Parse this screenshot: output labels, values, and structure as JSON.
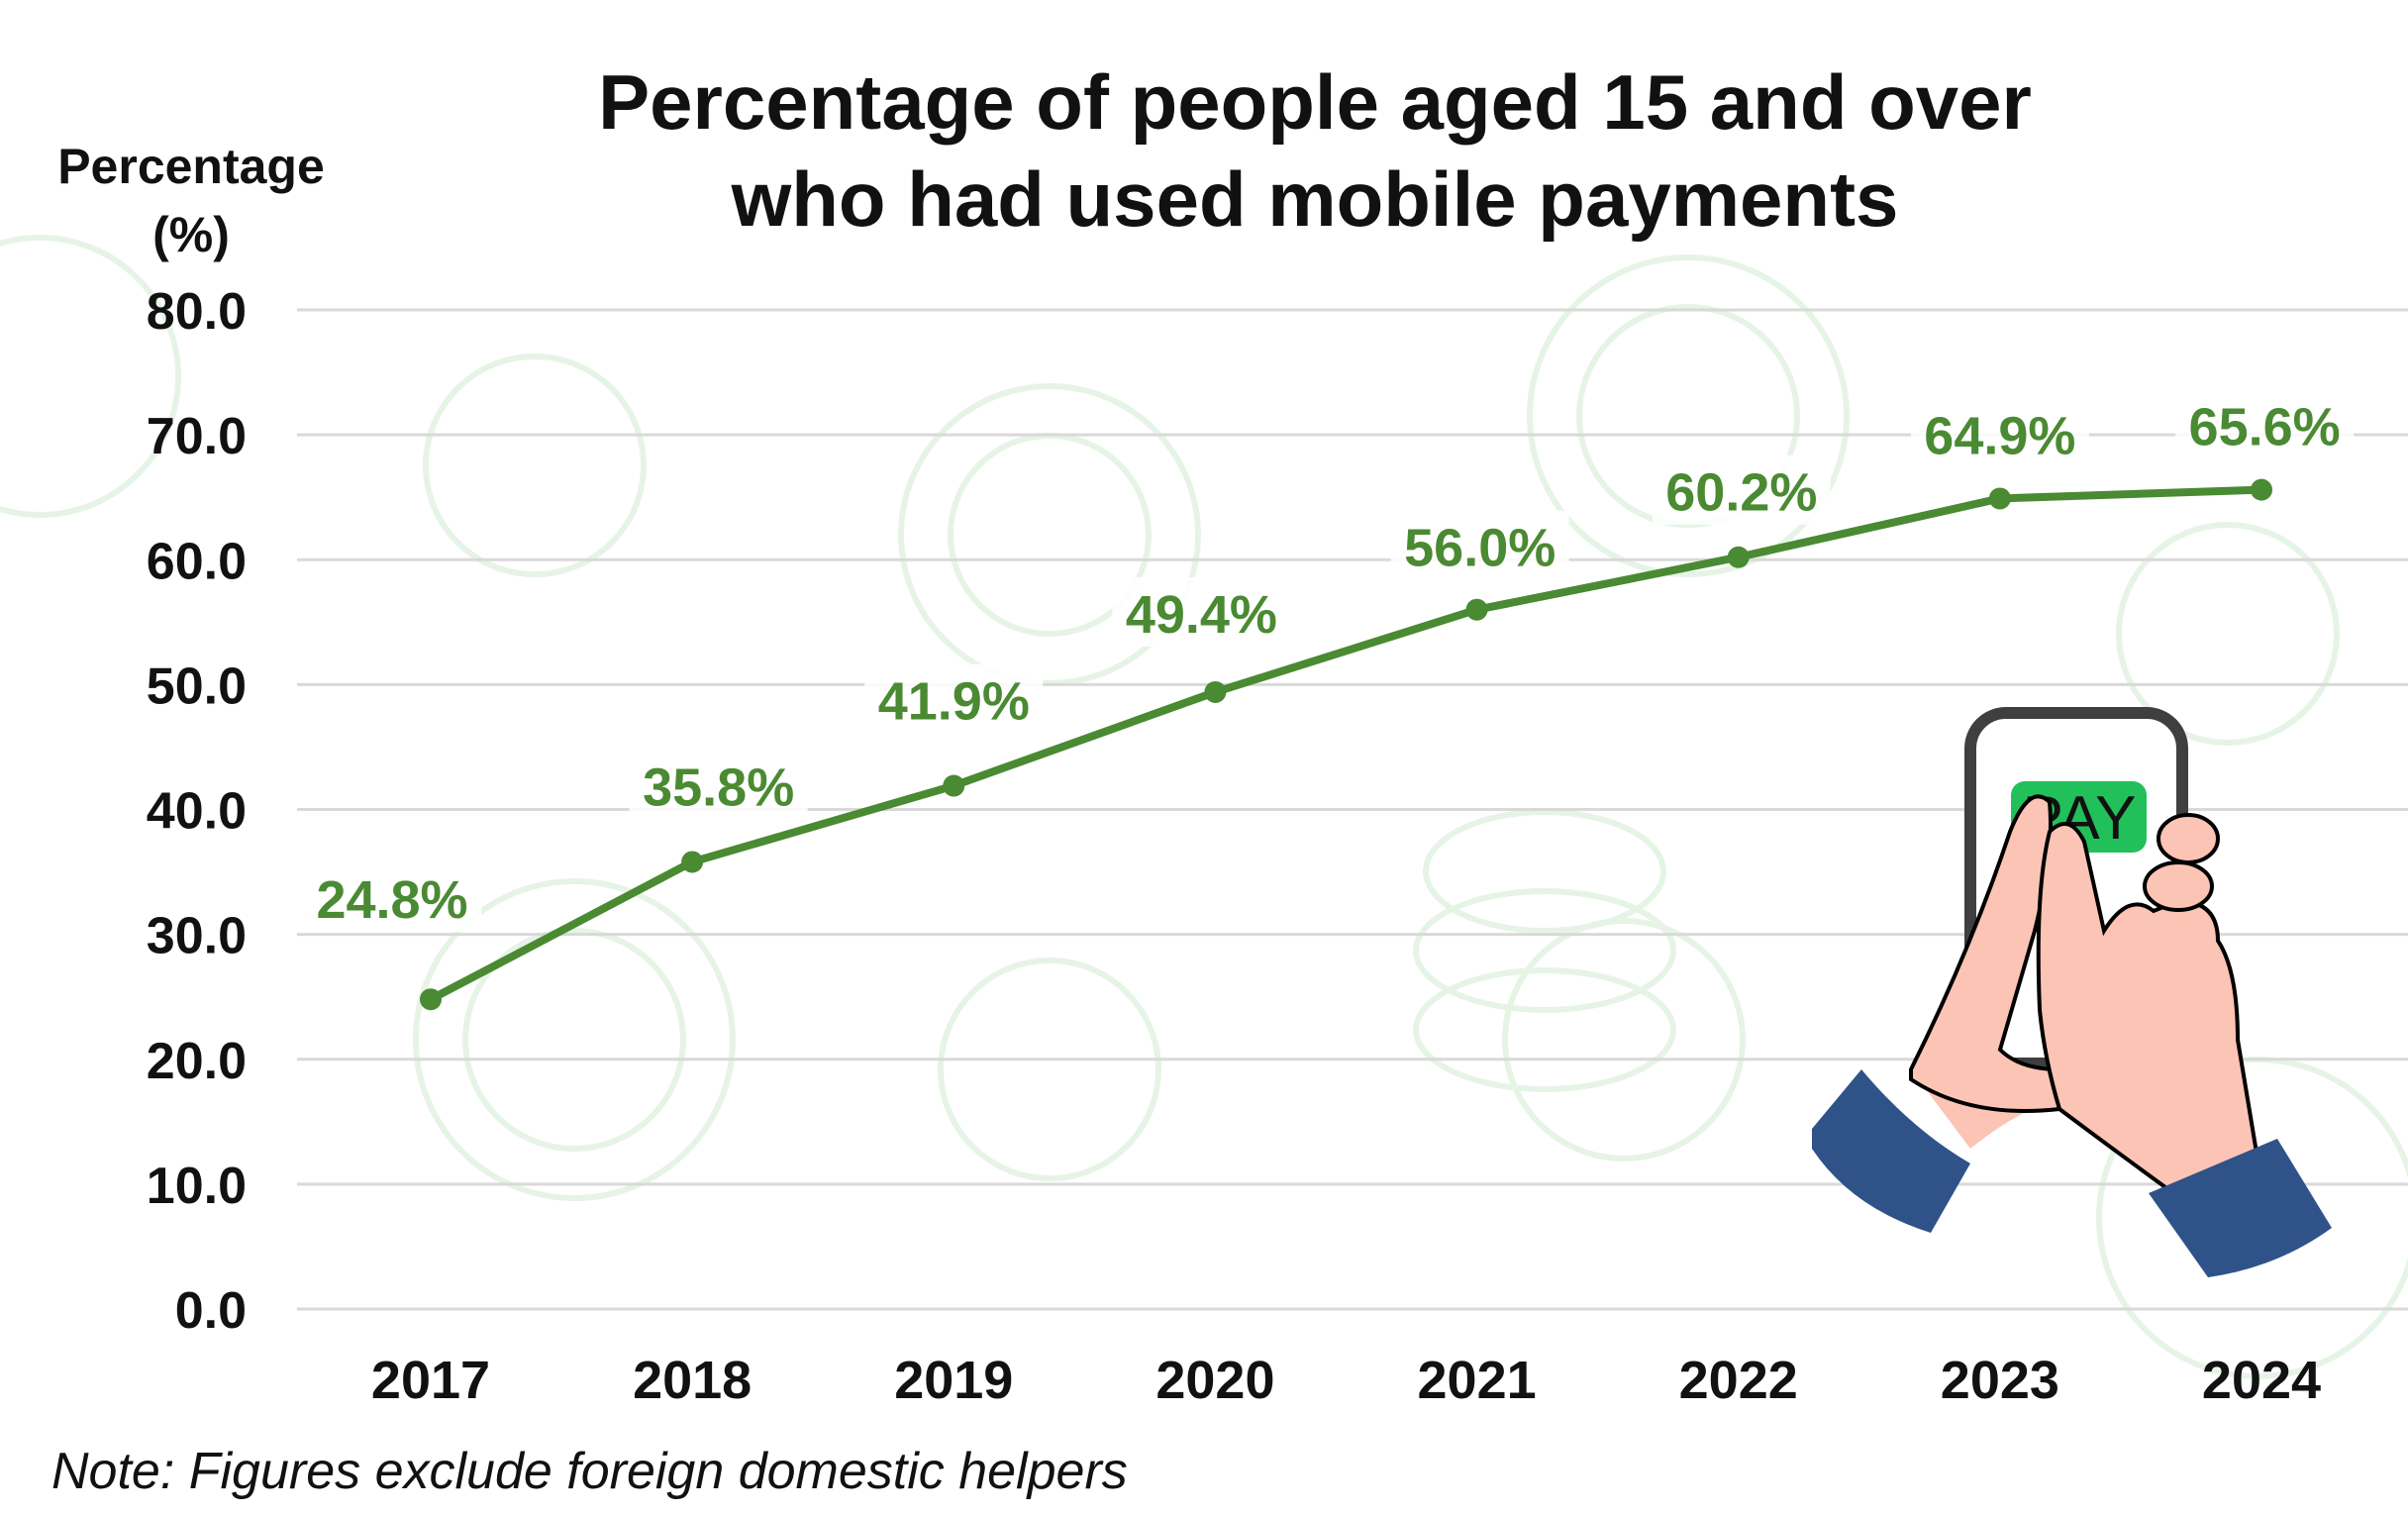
{
  "chart_data": {
    "type": "line",
    "title": [
      "Percentage of people aged 15 and over",
      "who had used mobile payments"
    ],
    "ylabel": [
      "Percentage",
      "(%)"
    ],
    "xlabel": "",
    "categories": [
      "2017",
      "2018",
      "2019",
      "2020",
      "2021",
      "2022",
      "2023",
      "2024"
    ],
    "values": [
      24.8,
      35.8,
      41.9,
      49.4,
      56.0,
      60.2,
      64.9,
      65.6
    ],
    "data_labels": [
      "24.8%",
      "35.8%",
      "41.9%",
      "49.4%",
      "56.0%",
      "60.2%",
      "64.9%",
      "65.6%"
    ],
    "ylim": [
      0,
      80
    ],
    "yticks": [
      "0.0",
      "10.0",
      "20.0",
      "30.0",
      "40.0",
      "50.0",
      "60.0",
      "70.0",
      "80.0"
    ],
    "grid": true,
    "legend": "none",
    "note": "Note: Figures exclude foreign domestic helpers",
    "illustration_text": "PAY",
    "colors": {
      "line": "#4a8a32",
      "grid": "#d9d9d9",
      "text": "#111111",
      "pay_button": "#22c05a",
      "skin": "#fcc4b4",
      "sleeve": "#2f5289",
      "background_motif": "#e6f4e6"
    }
  }
}
